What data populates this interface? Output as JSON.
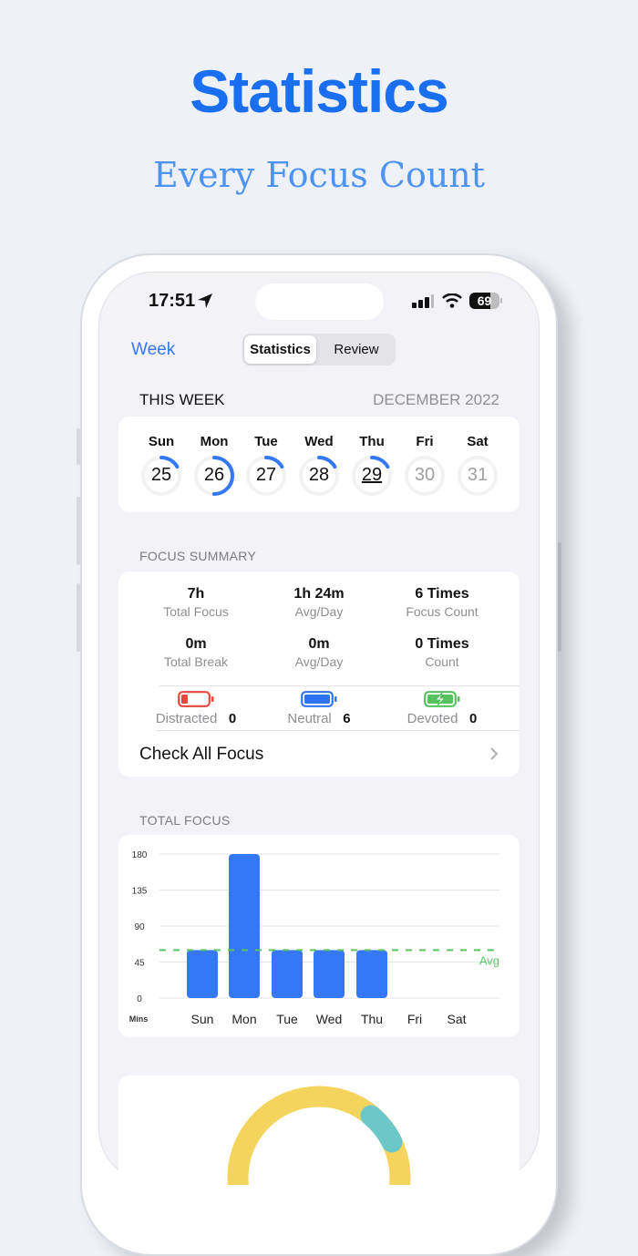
{
  "header": {
    "title": "Statistics",
    "subtitle": "Every Focus Count"
  },
  "status_bar": {
    "time": "17:51",
    "battery": "69",
    "icons": [
      "location-arrow-icon",
      "cellular-signal-icon",
      "wifi-icon",
      "battery-icon"
    ]
  },
  "nav": {
    "left_label": "Week",
    "segments": [
      "Statistics",
      "Review"
    ],
    "selected_segment": "Statistics"
  },
  "week": {
    "section_title": "THIS WEEK",
    "month": "DECEMBER 2022",
    "days": [
      {
        "name": "Sun",
        "date": "25",
        "progress": 0.167,
        "active": true
      },
      {
        "name": "Mon",
        "date": "26",
        "progress": 0.5,
        "active": true
      },
      {
        "name": "Tue",
        "date": "27",
        "progress": 0.167,
        "active": true
      },
      {
        "name": "Wed",
        "date": "28",
        "progress": 0.167,
        "active": true
      },
      {
        "name": "Thu",
        "date": "29",
        "progress": 0.167,
        "active": true,
        "today": true
      },
      {
        "name": "Fri",
        "date": "30",
        "progress": 0,
        "active": false
      },
      {
        "name": "Sat",
        "date": "31",
        "progress": 0,
        "active": false
      }
    ]
  },
  "summary": {
    "section_title": "FOCUS SUMMARY",
    "stats": [
      {
        "value": "7h",
        "label": "Total Focus"
      },
      {
        "value": "1h 24m",
        "label": "Avg/Day"
      },
      {
        "value": "6 Times",
        "label": "Focus Count"
      },
      {
        "value": "0m",
        "label": "Total Break"
      },
      {
        "value": "0m",
        "label": "Avg/Day"
      },
      {
        "value": "0 Times",
        "label": "Count"
      }
    ],
    "moods": [
      {
        "label": "Distracted",
        "count": "0",
        "color": "#e8473d",
        "icon": "battery-low-icon"
      },
      {
        "label": "Neutral",
        "count": "6",
        "color": "#2f74ef",
        "icon": "battery-full-icon"
      },
      {
        "label": "Devoted",
        "count": "0",
        "color": "#56c25e",
        "icon": "battery-charging-icon"
      }
    ],
    "check_all": "Check All Focus"
  },
  "colors": {
    "accent": "#3478f6",
    "avg": "#5cc261",
    "donut_yellow": "#f5d45e",
    "donut_teal": "#6cc7c9"
  },
  "chart_data": {
    "type": "bar",
    "section_title": "TOTAL FOCUS",
    "categories": [
      "Sun",
      "Mon",
      "Tue",
      "Wed",
      "Thu",
      "Fri",
      "Sat"
    ],
    "values": [
      60,
      180,
      60,
      60,
      60,
      0,
      0
    ],
    "ylabel": "Mins",
    "yticks": [
      0,
      45,
      90,
      135,
      180
    ],
    "ylim": [
      0,
      180
    ],
    "average": {
      "value": 60,
      "label": "Avg"
    },
    "grid": true,
    "bar_color": "#3478f6"
  }
}
